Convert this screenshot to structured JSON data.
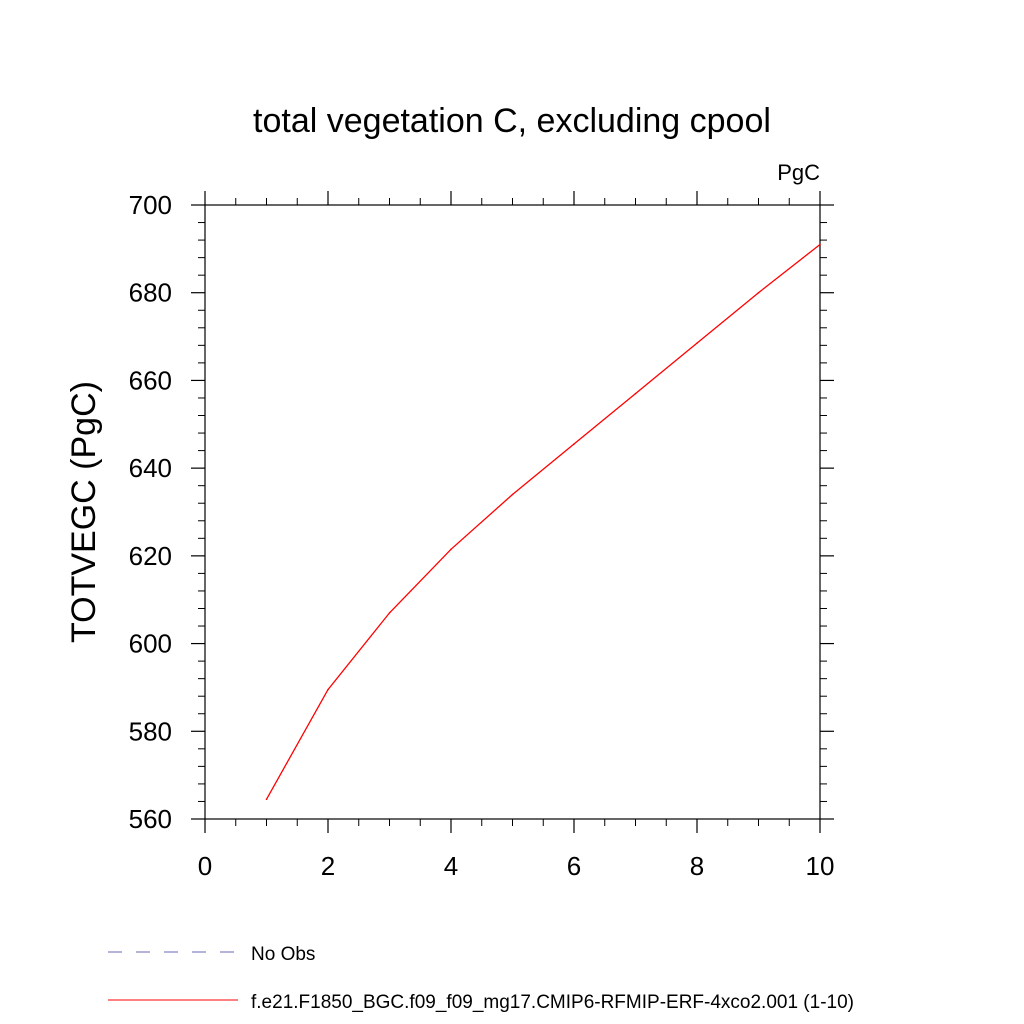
{
  "chart_data": {
    "type": "line",
    "title": "total vegetation C, excluding cpool",
    "units": "PgC",
    "ylabel": "TOTVEGC  (PgC)",
    "xlabel": "",
    "xlim": [
      0,
      10
    ],
    "ylim": [
      560,
      700
    ],
    "xticks": [
      0,
      2,
      4,
      6,
      8,
      10
    ],
    "xtick_labels": [
      "0",
      "2",
      "4",
      "6",
      "8",
      "10"
    ],
    "yticks": [
      560,
      580,
      600,
      620,
      640,
      660,
      680,
      700
    ],
    "ytick_labels": [
      "560",
      "580",
      "600",
      "620",
      "640",
      "660",
      "680",
      "700"
    ],
    "grid": false,
    "legend_position": "bottom",
    "series": [
      {
        "name": "No Obs",
        "color": "#6a6ab4",
        "dash": "dashed",
        "x": [],
        "y": []
      },
      {
        "name": "f.e21.F1850_BGC.f09_f09_mg17.CMIP6-RFMIP-ERF-4xco2.001 (1-10)",
        "color": "#ff0000",
        "dash": "solid",
        "x": [
          1,
          2,
          3,
          4,
          5,
          6,
          7,
          8,
          9,
          10
        ],
        "y": [
          564.5,
          589.5,
          607.0,
          621.5,
          634.0,
          645.5,
          657.0,
          668.5,
          680.0,
          691.0
        ]
      }
    ]
  }
}
